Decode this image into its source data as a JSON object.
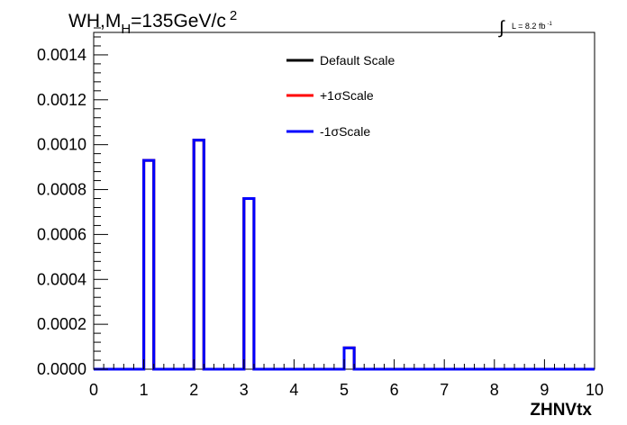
{
  "chart_data": {
    "type": "line",
    "title_main": "WH,M",
    "title_sub": "H",
    "title_rest": "=135GeV/c",
    "title_sup": "2",
    "lumi_label": "L = 8.2 fb",
    "lumi_sup": "-1",
    "xlabel": "ZHNVtx",
    "xlim": [
      0,
      10
    ],
    "ylim": [
      0,
      0.0015
    ],
    "x_ticks": [
      "0",
      "1",
      "2",
      "3",
      "4",
      "5",
      "6",
      "7",
      "8",
      "9",
      "10"
    ],
    "y_ticks": [
      "0.0000",
      "0.0002",
      "0.0004",
      "0.0006",
      "0.0008",
      "0.0010",
      "0.0012",
      "0.0014"
    ],
    "grid": false,
    "legend_position": "top-center",
    "bin_edges": [
      0,
      1,
      1.2,
      2,
      2.2,
      3,
      3.2,
      5,
      5.2,
      10
    ],
    "series": [
      {
        "name": "Default Scale",
        "color": "#000000",
        "values": [
          0,
          0.00093,
          0,
          0.00102,
          0,
          0.00076,
          0,
          9.5e-05,
          0
        ]
      },
      {
        "name": "+1σScale",
        "color": "#ff0000",
        "values": [
          0,
          0.00093,
          0,
          0.00102,
          0,
          0.00076,
          0,
          9.5e-05,
          0
        ]
      },
      {
        "name": "-1σScale",
        "color": "#0000ff",
        "values": [
          0,
          0.00093,
          0,
          0.00102,
          0,
          0.00076,
          0,
          9.5e-05,
          0
        ]
      }
    ]
  }
}
